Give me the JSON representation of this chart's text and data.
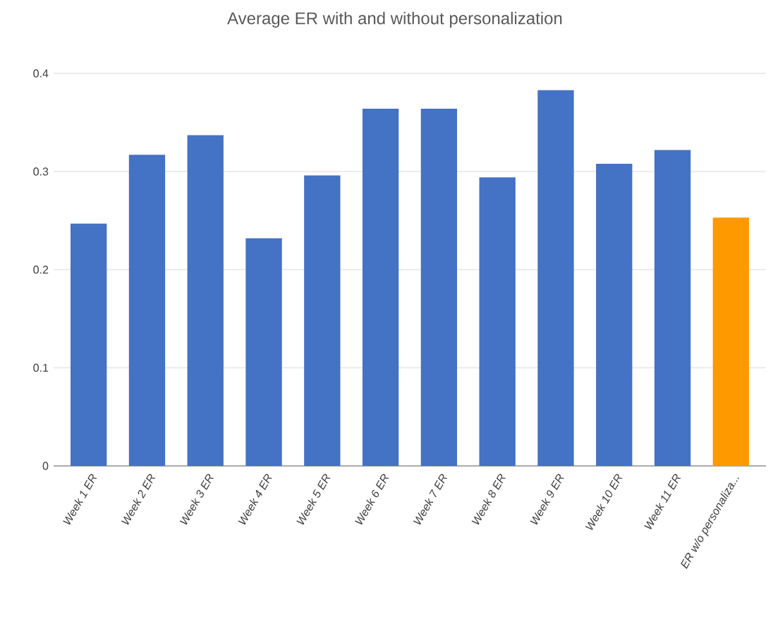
{
  "chart_data": {
    "type": "bar",
    "title": "Average ER with and without personalization",
    "categories": [
      "Week 1 ER",
      "Week 2 ER",
      "Week 3 ER",
      "Week 4 ER",
      "Week 5 ER",
      "Week 6 ER",
      "Week 7 ER",
      "Week 8 ER",
      "Week 9 ER",
      "Week 10 ER",
      "Week 11 ER",
      "ER w/o personaliza..."
    ],
    "values": [
      0.247,
      0.317,
      0.337,
      0.232,
      0.296,
      0.364,
      0.364,
      0.294,
      0.383,
      0.308,
      0.322,
      0.253
    ],
    "colors": [
      "#4472c4",
      "#4472c4",
      "#4472c4",
      "#4472c4",
      "#4472c4",
      "#4472c4",
      "#4472c4",
      "#4472c4",
      "#4472c4",
      "#4472c4",
      "#4472c4",
      "#ff9900"
    ],
    "ylim": [
      0,
      0.4
    ],
    "yticks": [
      0,
      0.1,
      0.2,
      0.3,
      0.4
    ],
    "grid": "y"
  }
}
